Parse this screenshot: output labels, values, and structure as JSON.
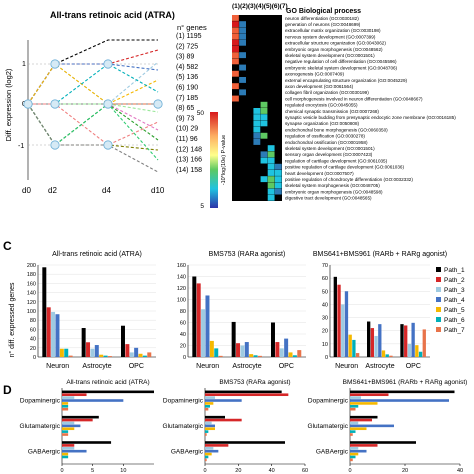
{
  "figure": {
    "panel_c_label": "C",
    "panel_d_label": "D"
  },
  "panel_a": {
    "title": "All-trans retinoic acid (ATRA)",
    "genes_header": "n° genes",
    "ylabel": "Diff. expression (log2)",
    "x_ticks": [
      "d0",
      "d2",
      "d4",
      "d10"
    ],
    "y_ticks": [
      "1",
      "0",
      "-1"
    ],
    "paths": [
      {
        "label": "(1) 1195",
        "color": "#000000"
      },
      {
        "label": "(2) 725",
        "color": "#d62728"
      },
      {
        "label": "(3) 89",
        "color": "#9ecae1"
      },
      {
        "label": "(4) 582",
        "color": "#4472c4"
      },
      {
        "label": "(5) 136",
        "color": "#f5b800"
      },
      {
        "label": "(6) 190",
        "color": "#00b0b9"
      },
      {
        "label": "(7) 185",
        "color": "#e8734a"
      },
      {
        "label": "(8) 65",
        "color": "#9be89b"
      },
      {
        "label": "(9) 73",
        "color": "#f08080"
      },
      {
        "label": "(10) 29",
        "color": "#e377c2"
      },
      {
        "label": "(11) 96",
        "color": "#2ca02c"
      },
      {
        "label": "(12) 148",
        "color": "#7f7f00"
      },
      {
        "label": "(13) 166",
        "color": "#2ecc71"
      },
      {
        "label": "(14) 158",
        "color": "#7f7f7f"
      }
    ]
  },
  "panel_b": {
    "col_header": "(1)(2)(3)(4)(5)(6)(7)",
    "go_header": "GO Biological process",
    "colorbar_label": "-10*log(10e) P-value",
    "colorbar_ticks": [
      "50",
      "5"
    ],
    "terms": [
      "neuron differentiation (GO:0030182)",
      "generation of neurons (GO:0048699)",
      "extracellular matrix organization (GO:0030198)",
      "nervous system development (GO:0007399)",
      "extracellular structure organization (GO:0043062)",
      "embryonic organ morphogenesis (GO:0048562)",
      "skeletal system development (GO:0001501)",
      "negative regulation of cell differentiation (GO:0045596)",
      "embryonic skeletal system development (GO:0048706)",
      "axonogenesis (GO:0007409)",
      "external encapsulating structure organization (GO:0045229)",
      "axon development (GO:0061564)",
      "collagen fibril organization (GO:0030199)",
      "cell morphogenesis involved in neuron differentiation (GO:0048667)",
      "regulated exocytosis (GO:0045055)",
      "chemical synaptic transmission (GO:0007268)",
      "synaptic vesicle budding from presynaptic endocytic zone membrane (GO:0016185)",
      "synapse organization (GO:0050808)",
      "endochondral bone morphogenesis (GO:0060350)",
      "regulation of ossification (GO:0030278)",
      "endochondral ossification (GO:0001958)",
      "skeletal system development (GO:0001501)",
      "sensory organ development (GO:0007423)",
      "regulation of cartilage development (GO:0061035)",
      "positive regulation of cartilage development (GO:0061036)",
      "heart development (GO:0007507)",
      "positive regulation of chondrocyte differentiation (GO:0032332)",
      "skeletal system morphogenesis (GO:0048705)",
      "embryonic organ morphogenesis (GO:0048598)",
      "digestive tract development (GO:0048565)"
    ],
    "cells": [
      [
        0,
        5
      ],
      [
        0,
        1
      ],
      [
        0,
        5
      ],
      [
        0,
        0
      ],
      [
        0,
        2
      ],
      [
        0,
        3
      ],
      [
        0,
        4
      ],
      [
        0,
        6
      ],
      [
        0,
        7
      ],
      [
        0,
        9
      ],
      [
        0,
        11
      ],
      [
        0,
        13
      ],
      [
        1,
        1
      ],
      [
        1,
        2
      ],
      [
        1,
        3
      ],
      [
        1,
        4
      ],
      [
        1,
        6
      ],
      [
        1,
        8
      ],
      [
        1,
        10
      ],
      [
        1,
        12
      ],
      [
        3,
        15
      ],
      [
        3,
        16
      ],
      [
        3,
        17
      ],
      [
        3,
        18
      ],
      [
        3,
        19
      ],
      [
        3,
        20
      ],
      [
        4,
        14
      ],
      [
        4,
        15
      ],
      [
        4,
        16
      ],
      [
        4,
        17
      ],
      [
        4,
        19
      ],
      [
        4,
        22
      ],
      [
        4,
        23
      ],
      [
        4,
        26
      ],
      [
        5,
        21
      ],
      [
        5,
        22
      ],
      [
        5,
        23
      ],
      [
        5,
        24
      ],
      [
        5,
        25
      ],
      [
        5,
        26
      ],
      [
        5,
        27
      ],
      [
        5,
        28
      ],
      [
        5,
        29
      ],
      [
        6,
        24
      ],
      [
        6,
        25
      ],
      [
        6,
        26
      ],
      [
        6,
        27
      ],
      [
        6,
        28
      ]
    ],
    "cell_values": [
      45,
      40,
      40,
      35,
      30,
      38,
      42,
      36,
      34,
      30,
      33,
      31,
      8,
      10,
      8,
      9,
      7,
      8,
      9,
      7,
      15,
      20,
      18,
      16,
      14,
      12,
      22,
      24,
      20,
      18,
      26,
      14,
      20,
      16,
      20,
      22,
      18,
      16,
      20,
      24,
      22,
      18,
      16,
      14,
      18,
      20,
      16,
      12
    ]
  },
  "chart_data": [
    {
      "type": "bar",
      "title": "All-trans retinoic acid (ATRA)",
      "ylabel": "n° diff. expressed genes",
      "categories": [
        "Neuron",
        "Astrocyte",
        "OPC"
      ],
      "ylim": [
        0,
        200
      ],
      "yticks": [
        0,
        20,
        40,
        60,
        80,
        100,
        120,
        140,
        160,
        180,
        200
      ],
      "series": [
        {
          "name": "Path_1",
          "values": [
            195,
            63,
            68
          ]
        },
        {
          "name": "Path_2",
          "values": [
            108,
            32,
            28
          ]
        },
        {
          "name": "Path_3",
          "values": [
            98,
            18,
            10
          ]
        },
        {
          "name": "Path_4",
          "values": [
            93,
            26,
            20
          ]
        },
        {
          "name": "Path_5",
          "values": [
            18,
            5,
            7
          ]
        },
        {
          "name": "Path_6",
          "values": [
            18,
            3,
            3
          ]
        },
        {
          "name": "Path_7",
          "values": [
            3,
            2,
            10
          ]
        }
      ]
    },
    {
      "type": "bar",
      "title": "BMS753 (RARa agonist)",
      "categories": [
        "Neuron",
        "Astrocyte",
        "OPC"
      ],
      "ylim": [
        0,
        160
      ],
      "yticks": [
        0,
        20,
        40,
        60,
        80,
        100,
        120,
        140,
        160
      ],
      "series": [
        {
          "name": "Path_1",
          "values": [
            140,
            61,
            60
          ]
        },
        {
          "name": "Path_2",
          "values": [
            128,
            24,
            26
          ]
        },
        {
          "name": "Path_3",
          "values": [
            83,
            20,
            15
          ]
        },
        {
          "name": "Path_4",
          "values": [
            107,
            26,
            32
          ]
        },
        {
          "name": "Path_5",
          "values": [
            28,
            5,
            8
          ]
        },
        {
          "name": "Path_6",
          "values": [
            15,
            3,
            3
          ]
        },
        {
          "name": "Path_7",
          "values": [
            2,
            2,
            12
          ]
        }
      ]
    },
    {
      "type": "bar",
      "title": "BMS641+BMS961 (RARb + RARg agonist)",
      "categories": [
        "Neuron",
        "Astrocyte",
        "OPC"
      ],
      "ylim": [
        0,
        70
      ],
      "yticks": [
        0,
        10,
        20,
        30,
        40,
        50,
        60,
        70
      ],
      "legend_position": "right",
      "series": [
        {
          "name": "Path_1",
          "values": [
            61,
            27,
            25
          ]
        },
        {
          "name": "Path_2",
          "values": [
            55,
            22,
            24
          ]
        },
        {
          "name": "Path_3",
          "values": [
            40,
            16,
            10
          ]
        },
        {
          "name": "Path_4",
          "values": [
            50,
            25,
            26
          ]
        },
        {
          "name": "Path_5",
          "values": [
            17,
            5,
            9
          ]
        },
        {
          "name": "Path_6",
          "values": [
            13,
            2,
            4
          ]
        },
        {
          "name": "Path_7",
          "values": [
            3,
            1,
            21
          ]
        }
      ]
    },
    {
      "type": "bar",
      "orientation": "horizontal",
      "title": "All-trans retinoic acid (ATRA)",
      "categories": [
        "Dopaminergic",
        "Glutamatergic",
        "GABAergic"
      ],
      "xlim": [
        0,
        15
      ],
      "xticks": [
        0,
        5,
        10
      ],
      "series": [
        {
          "name": "Path_1",
          "values": [
            15,
            6,
            8
          ]
        },
        {
          "name": "Path_2",
          "values": [
            4,
            5,
            2
          ]
        },
        {
          "name": "Path_3",
          "values": [
            2,
            2,
            2
          ]
        },
        {
          "name": "Path_4",
          "values": [
            10,
            3,
            4
          ]
        },
        {
          "name": "Path_5",
          "values": [
            1,
            2,
            1
          ]
        },
        {
          "name": "Path_6",
          "values": [
            1,
            1,
            1
          ]
        },
        {
          "name": "Path_7",
          "values": [
            1,
            1,
            0
          ]
        }
      ]
    },
    {
      "type": "bar",
      "orientation": "horizontal",
      "title": "BMS753 (RARa agonist)",
      "categories": [
        "Dopaminergic",
        "Glutamatergic",
        "GABAergic"
      ],
      "xlim": [
        0,
        60
      ],
      "xticks": [
        0,
        20,
        40,
        60
      ],
      "series": [
        {
          "name": "Path_1",
          "values": [
            46,
            12,
            48
          ]
        },
        {
          "name": "Path_2",
          "values": [
            50,
            22,
            14
          ]
        },
        {
          "name": "Path_3",
          "values": [
            6,
            4,
            5
          ]
        },
        {
          "name": "Path_4",
          "values": [
            22,
            6,
            8
          ]
        },
        {
          "name": "Path_5",
          "values": [
            5,
            6,
            4
          ]
        },
        {
          "name": "Path_6",
          "values": [
            3,
            2,
            2
          ]
        },
        {
          "name": "Path_7",
          "values": [
            2,
            1,
            1
          ]
        }
      ]
    },
    {
      "type": "bar",
      "orientation": "horizontal",
      "title": "BMS641+BMS961 (RARb + RARg agonist)",
      "categories": [
        "Dopaminergic",
        "Glutamatergic",
        "GABAergic"
      ],
      "xlim": [
        0,
        40
      ],
      "xticks": [
        0,
        20,
        40
      ],
      "series": [
        {
          "name": "Path_1",
          "values": [
            38,
            10,
            24
          ]
        },
        {
          "name": "Path_2",
          "values": [
            14,
            8,
            10
          ]
        },
        {
          "name": "Path_3",
          "values": [
            4,
            3,
            3
          ]
        },
        {
          "name": "Path_4",
          "values": [
            36,
            16,
            6
          ]
        },
        {
          "name": "Path_5",
          "values": [
            10,
            6,
            3
          ]
        },
        {
          "name": "Path_6",
          "values": [
            3,
            2,
            2
          ]
        },
        {
          "name": "Path_7",
          "values": [
            2,
            1,
            1
          ]
        }
      ]
    }
  ],
  "series_colors": [
    "#000000",
    "#d62728",
    "#9ecae1",
    "#4472c4",
    "#f5b800",
    "#00b0b9",
    "#e8734a"
  ]
}
